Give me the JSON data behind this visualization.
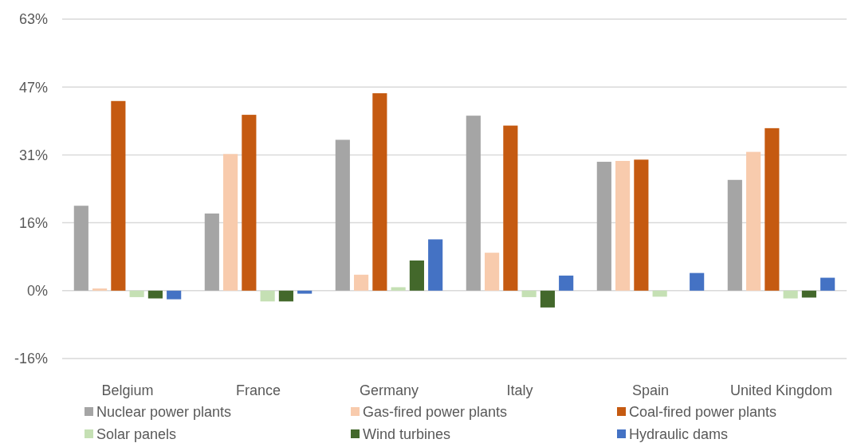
{
  "chart_data": {
    "type": "bar",
    "categories": [
      "Belgium",
      "France",
      "Germany",
      "Italy",
      "Spain",
      "United Kingdom"
    ],
    "series": [
      {
        "name": "Nuclear power plants",
        "color": "#a5a5a5",
        "values": [
          19.7,
          17.9,
          35.0,
          40.6,
          29.9,
          25.7
        ]
      },
      {
        "name": "Gas-fired power plants",
        "color": "#f8cbad",
        "values": [
          0.5,
          31.7,
          3.7,
          8.8,
          30.1,
          32.2
        ]
      },
      {
        "name": "Coal-fired power plants",
        "color": "#c55a11",
        "values": [
          44.0,
          40.8,
          45.8,
          38.3,
          30.4,
          37.7
        ]
      },
      {
        "name": "Solar panels",
        "color": "#c5e0b4",
        "values": [
          -1.5,
          -2.5,
          0.8,
          -1.5,
          -1.4,
          -1.8
        ]
      },
      {
        "name": "Wind turbines",
        "color": "#43682b",
        "values": [
          -1.8,
          -2.5,
          7.0,
          -3.9,
          0,
          -1.6
        ]
      },
      {
        "name": "Hydraulic dams",
        "color": "#4472c4",
        "values": [
          -2.0,
          -0.7,
          11.9,
          3.5,
          4.1,
          3.0
        ]
      }
    ],
    "ylim": [
      -15.75,
      63
    ],
    "yticks": [
      {
        "value": -15.75,
        "label": "-16%"
      },
      {
        "value": 0,
        "label": "0%"
      },
      {
        "value": 15.75,
        "label": "16%"
      },
      {
        "value": 31.5,
        "label": "31%"
      },
      {
        "value": 47.25,
        "label": "47%"
      },
      {
        "value": 63,
        "label": "63%"
      }
    ],
    "grid": "y",
    "legend": "bottom"
  }
}
